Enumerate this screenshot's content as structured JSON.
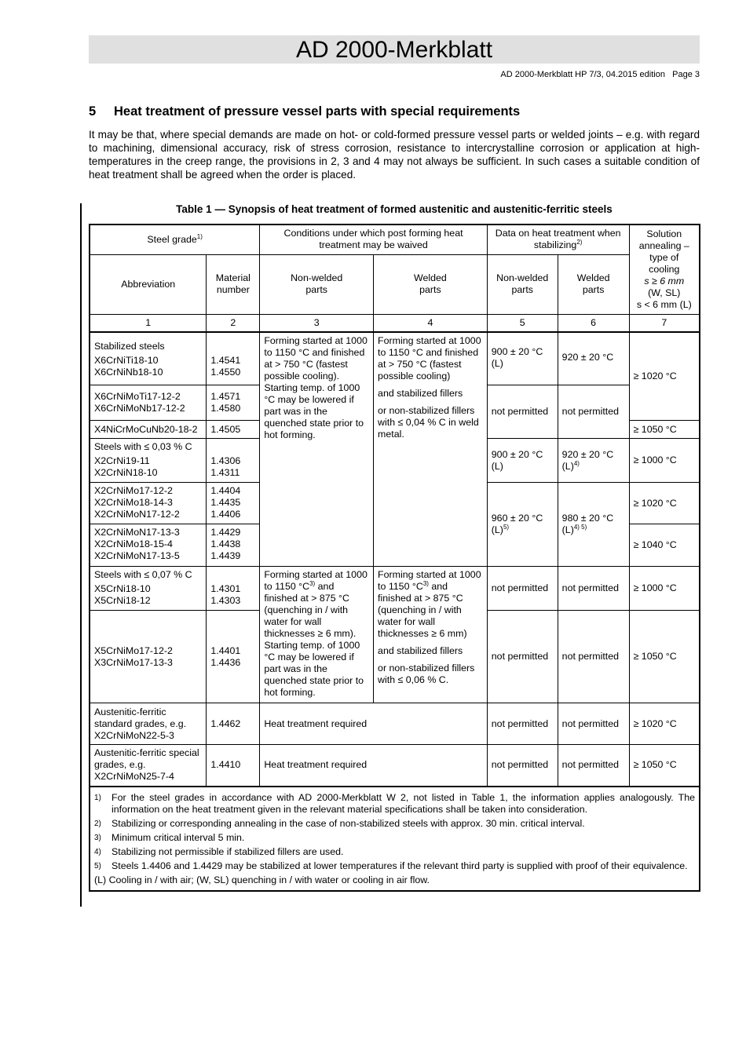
{
  "header": {
    "title": "AD 2000-Merkblatt",
    "subtitle": "AD 2000-Merkblatt HP 7/3, 04.2015 edition   Page 3"
  },
  "section": {
    "number": "5",
    "title": "Heat treatment of pressure vessel parts with special requirements",
    "paragraph": "It may be that, where special demands are made on hot- or cold-formed pressure vessel parts or welded joints – e.g. with regard to machining, dimensional accuracy, risk of stress corrosion, resistance to intercrystalline corrosion or application at high-temperatures in the creep range, the provisions in 2, 3 and 4 may not always be sufficient. In such cases a suitable condition of heat treatment shall be agreed when the order is placed."
  },
  "table": {
    "caption": "Table 1 — Synopsis of heat treatment of formed austenitic and austenitic-ferritic steels",
    "head": {
      "steel_grade": "Steel grade",
      "steel_grade_sup": "1)",
      "conditions": "Conditions under which post forming heat treatment may be waived",
      "stabilizing": "Data on heat treatment when stabilizing",
      "stabilizing_sup": "2)",
      "solution": [
        "Solution",
        "annealing –",
        "type of",
        "cooling",
        "s ≥ 6 mm",
        "(W, SL)",
        "s < 6 mm (L)"
      ],
      "abbreviation": "Abbreviation",
      "material_number": [
        "Material",
        "number"
      ],
      "non_welded": [
        "Non-welded",
        "parts"
      ],
      "welded": [
        "Welded",
        "parts"
      ],
      "numbers": [
        "1",
        "2",
        "3",
        "4",
        "5",
        "6",
        "7"
      ]
    },
    "group_a": {
      "col3": [
        "Forming started at 1000 to 1150 °C and finished at > 750 °C (fastest possible cooling).",
        "Starting temp. of 1000 °C may be lowered if part was in the quenched state prior to hot forming."
      ],
      "col4": [
        "Forming started at 1000 to 1150 °C and finished at > 750 °C (fastest possible cooling)",
        "and stabilized fillers",
        "or non-stabilized fillers with ≤ 0,04 % C in weld metal."
      ]
    },
    "group_b": {
      "col3": [
        "Forming started at 1000 to 1150 °C",
        "3)",
        " and finished at > 875 °C (quenching in / with water for wall thicknesses ≥ 6 mm).",
        "Starting temp. of 1000 °C may be lowered if part was in the quenched state prior to hot forming."
      ],
      "col4": [
        "Forming started at 1000 to 1150 °C",
        "3)",
        " and finished at > 875 °C (quenching in / with water for wall thicknesses ≥ 6 mm)",
        "and stabilized fillers",
        "or non-stabilized fillers with ≤ 0,06 % C."
      ]
    },
    "rows": [
      {
        "label": "Stabilized steels",
        "abbr": [
          "X6CrNiTi18-10",
          "X6CrNiNb18-10"
        ],
        "mat": [
          "1.4541",
          "1.4550"
        ],
        "c5": "900 ± 20 °C (L)",
        "c6": "920 ± 20 °C",
        "c7": "≥ 1020 °C"
      },
      {
        "abbr": [
          "X6CrNiMoTi17-12-2",
          "X6CrNiMoNb17-12-2"
        ],
        "mat": [
          "1.4571",
          "1.4580"
        ],
        "c5": "not permitted",
        "c6": "not permitted"
      },
      {
        "abbr": [
          "X4NiCrMoCuNb20-18-2"
        ],
        "mat": [
          "1.4505"
        ],
        "c7": "≥ 1050 °C"
      },
      {
        "label": "Steels with ≤ 0,03 % C",
        "abbr": [
          "X2CrNi19-11",
          "X2CrNiN18-10"
        ],
        "mat": [
          "1.4306",
          "1.4311"
        ],
        "c5": "900 ± 20 °C (L)",
        "c6": "920 ± 20 °C (L)",
        "c6_sup": "4)",
        "c7": "≥ 1000 °C"
      },
      {
        "abbr": [
          "X2CrNiMo17-12-2",
          "X2CrNiMo18-14-3",
          "X2CrNiMoN17-12-2"
        ],
        "mat": [
          "1.4404",
          "1.4435",
          "1.4406"
        ],
        "c5": "960 ± 20 °C (L)",
        "c5_sup": "5)",
        "c6": "980 ± 20 °C (L)",
        "c6_sup": "4) 5)",
        "c7": "≥ 1020 °C"
      },
      {
        "abbr": [
          "X2CrNiMoN17-13-3",
          "X2CrNiMo18-15-4",
          "X2CrNiMoN17-13-5"
        ],
        "mat": [
          "1.4429",
          "1.4438",
          "1.4439"
        ],
        "c7": "≥ 1040 °C"
      },
      {
        "label": "Steels with ≤ 0,07 % C",
        "abbr": [
          "X5CrNi18-10",
          "X5CrNi18-12"
        ],
        "mat": [
          "1.4301",
          "1.4303"
        ],
        "c5": "not permitted",
        "c6": "not permitted",
        "c7": "≥ 1000 °C"
      },
      {
        "abbr": [
          "X5CrNiMo17-12-2",
          "X3CrNiMo17-13-3"
        ],
        "mat": [
          "1.4401",
          "1.4436"
        ],
        "c5": "not permitted",
        "c6": "not permitted",
        "c7": "≥ 1050 °C"
      },
      {
        "abbr": [
          "Austenitic-ferritic standard grades, e.g. X2CrNiMoN22-5-3"
        ],
        "mat": [
          "1.4462"
        ],
        "c34": "Heat treatment required",
        "c5": "not permitted",
        "c6": "not permitted",
        "c7": "≥ 1020 °C"
      },
      {
        "abbr": [
          "Austenitic-ferritic special grades, e.g. X2CrNiMoN25-7-4"
        ],
        "mat": [
          "1.4410"
        ],
        "c34": "Heat treatment required",
        "c5": "not permitted",
        "c6": "not permitted",
        "c7": "≥ 1050 °C"
      }
    ],
    "footnotes": [
      {
        "key": "1)",
        "text": "For the steel grades in accordance with AD 2000-Merkblatt W 2, not listed in Table 1, the information applies analogously. The information on the heat treatment given in the relevant material specifications shall be taken into consideration."
      },
      {
        "key": "2)",
        "text": "Stabilizing or corresponding annealing in the case of non-stabilized steels with approx. 30 min. critical interval."
      },
      {
        "key": "3)",
        "text": "Minimum critical interval 5 min."
      },
      {
        "key": "4)",
        "text": "Stabilizing not permissible if stabilized fillers are used."
      },
      {
        "key": "5)",
        "text": "Steels 1.4406 and 1.4429 may be stabilized at lower temperatures if the relevant third party is supplied with proof of their equivalence."
      }
    ],
    "legend": "(L) Cooling in / with air; (W, SL) quenching in / with water or cooling in air flow."
  }
}
